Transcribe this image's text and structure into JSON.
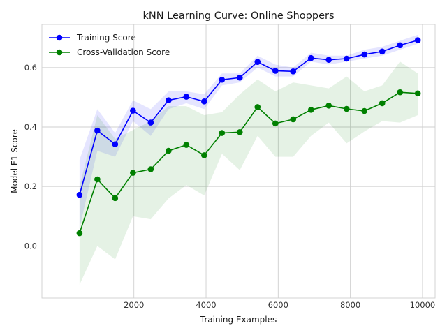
{
  "chart_data": {
    "type": "line",
    "title": "kNN Learning Curve: Online Shoppers",
    "xlabel": "Training Examples",
    "ylabel": "Model F1 Score",
    "xlim": [
      -550,
      10350
    ],
    "ylim": [
      -0.175,
      0.745
    ],
    "xticks": [
      2000,
      4000,
      6000,
      8000,
      10000
    ],
    "yticks": [
      0.0,
      0.2,
      0.4,
      0.6
    ],
    "grid": true,
    "legend_position": "top-left",
    "x": [
      493,
      987,
      1480,
      1974,
      2467,
      2961,
      3454,
      3948,
      4441,
      4935,
      5428,
      5922,
      6415,
      6909,
      7402,
      7896,
      8389,
      8883,
      9376,
      9870
    ],
    "series": [
      {
        "name": "Training Score",
        "color": "#0000ff",
        "values": [
          0.172,
          0.388,
          0.342,
          0.455,
          0.415,
          0.49,
          0.502,
          0.486,
          0.559,
          0.566,
          0.619,
          0.589,
          0.587,
          0.632,
          0.626,
          0.63,
          0.644,
          0.654,
          0.675,
          0.692
        ],
        "band_lower": [
          0.06,
          0.32,
          0.3,
          0.42,
          0.37,
          0.46,
          0.48,
          0.46,
          0.54,
          0.55,
          0.6,
          0.57,
          0.57,
          0.62,
          0.61,
          0.62,
          0.63,
          0.64,
          0.66,
          0.68
        ],
        "band_upper": [
          0.29,
          0.46,
          0.38,
          0.49,
          0.46,
          0.52,
          0.52,
          0.51,
          0.58,
          0.58,
          0.64,
          0.61,
          0.6,
          0.65,
          0.64,
          0.64,
          0.66,
          0.67,
          0.69,
          0.71
        ]
      },
      {
        "name": "Cross-Validation Score",
        "color": "#008000",
        "values": [
          0.043,
          0.224,
          0.161,
          0.246,
          0.258,
          0.32,
          0.34,
          0.305,
          0.38,
          0.383,
          0.467,
          0.412,
          0.426,
          0.458,
          0.472,
          0.461,
          0.454,
          0.48,
          0.517,
          0.513
        ],
        "band_lower": [
          -0.13,
          0.0,
          -0.045,
          0.1,
          0.09,
          0.16,
          0.205,
          0.17,
          0.31,
          0.255,
          0.37,
          0.3,
          0.3,
          0.37,
          0.415,
          0.345,
          0.385,
          0.42,
          0.415,
          0.44
        ],
        "band_upper": [
          0.2,
          0.44,
          0.36,
          0.39,
          0.42,
          0.47,
          0.47,
          0.44,
          0.45,
          0.51,
          0.56,
          0.52,
          0.55,
          0.54,
          0.53,
          0.57,
          0.52,
          0.54,
          0.62,
          0.58
        ]
      }
    ]
  }
}
